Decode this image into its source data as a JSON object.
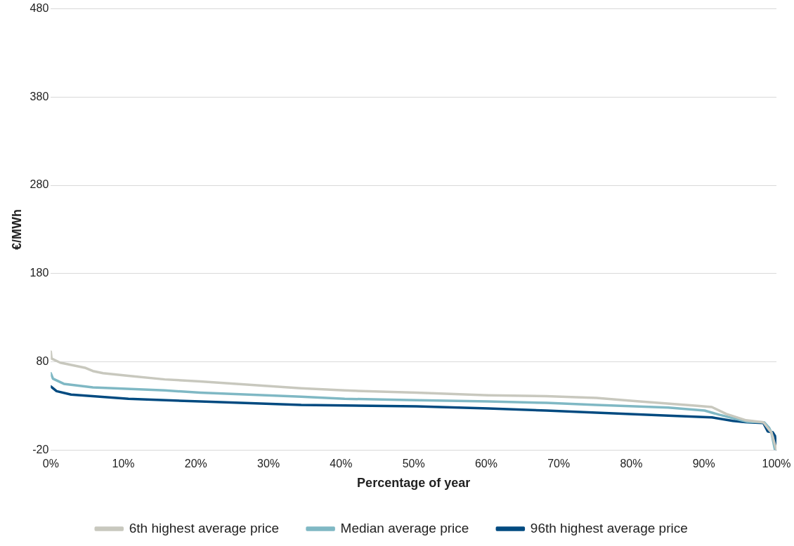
{
  "chart_data": {
    "type": "line",
    "xlabel": "Percentage of year",
    "ylabel": "€/MWh",
    "xlim": [
      0,
      100
    ],
    "xticks": [
      {
        "value": 0,
        "label": "0%"
      },
      {
        "value": 10,
        "label": "10%"
      },
      {
        "value": 20,
        "label": "20%"
      },
      {
        "value": 30,
        "label": "30%"
      },
      {
        "value": 40,
        "label": "40%"
      },
      {
        "value": 50,
        "label": "50%"
      },
      {
        "value": 60,
        "label": "60%"
      },
      {
        "value": 70,
        "label": "70%"
      },
      {
        "value": 80,
        "label": "80%"
      },
      {
        "value": 90,
        "label": "90%"
      },
      {
        "value": 100,
        "label": "100%"
      }
    ],
    "ylim": [
      -20,
      480
    ],
    "yticks": [
      -20,
      80,
      180,
      280,
      380,
      480
    ],
    "grid": "y",
    "legend": "bottom",
    "marker": "none",
    "line_style": "solid",
    "series": [
      {
        "name": "6th highest average price",
        "color": "#c8c8be",
        "x": [
          0,
          0.1,
          1.3,
          4.8,
          5.8,
          7.2,
          10.7,
          15.7,
          20.6,
          34.5,
          40.5,
          50.4,
          60.3,
          68.3,
          75.2,
          80.2,
          89.1,
          91.1,
          93.1,
          95.8,
          98.2,
          98.8,
          99.3,
          100
        ],
        "values": [
          91.5,
          83.6,
          79,
          73,
          69.5,
          67,
          64,
          60,
          57.7,
          50,
          47.5,
          45,
          42,
          41,
          39,
          35.7,
          30,
          28.7,
          20.8,
          13.7,
          11.4,
          5,
          0,
          -20
        ]
      },
      {
        "name": "Median average price",
        "color": "#7fb8c4",
        "x": [
          0,
          0.3,
          1.8,
          5.8,
          15.7,
          20.6,
          34.5,
          40.5,
          50.4,
          60.3,
          68.3,
          75.2,
          85.1,
          90.1,
          92.1,
          96.0,
          98.3,
          99.0,
          99.3,
          99.8
        ],
        "values": [
          67,
          60.8,
          55,
          51,
          47.5,
          45,
          40.4,
          38,
          36.5,
          35,
          33.4,
          31,
          28,
          24.7,
          20,
          12,
          11.4,
          5,
          0,
          -20
        ]
      },
      {
        "name": "96th highest average price",
        "color": "#004a80",
        "x": [
          0,
          0.8,
          2.8,
          10.7,
          20.6,
          34.5,
          50.4,
          60.3,
          68.3,
          75.2,
          85.1,
          91.1,
          94.0,
          96.0,
          98.2,
          98.8,
          99.5,
          99.8,
          100
        ],
        "values": [
          52,
          46.7,
          42.8,
          38,
          35,
          31,
          29.5,
          27,
          24.7,
          22.4,
          19,
          17,
          13,
          11.4,
          10.6,
          1,
          0,
          -4,
          -20
        ]
      }
    ]
  }
}
